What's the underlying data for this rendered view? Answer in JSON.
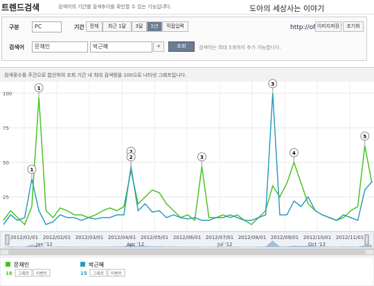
{
  "header": {
    "title": "트렌드검색",
    "description": "검색어의 기간별 검색추이를 확인할 수 있는 기능입니다.",
    "help": "?",
    "watermark": "도아의 세상사는 이야기",
    "url": "http://offree.net/",
    "buttons": [
      "이미지저장",
      "초기화"
    ]
  },
  "form": {
    "type_label": "구분",
    "type_value": "PC",
    "period_label": "기간",
    "periods": [
      "전체",
      "최근 1달",
      "3달",
      "1년",
      "직접입력"
    ],
    "keyword_label": "검색어",
    "keywords": [
      "문재인",
      "박근혜"
    ],
    "add": "+",
    "search": "조회",
    "hint": "검색어는 최대 5개까지 추가 가능합니다."
  },
  "chart": {
    "type": "line",
    "note": "검색횟수를 주간으로 합산하여 조회 기간 내 최대 검색량을 100으로 나타낸 그래프입니다.",
    "ylim": [
      0,
      100
    ],
    "yticks": [
      25,
      50,
      75,
      100
    ],
    "series": [
      {
        "name": "문재인",
        "color": "#46c31f",
        "values": [
          8,
          15,
          10,
          5,
          18,
          97,
          15,
          10,
          17,
          15,
          12,
          12,
          10,
          12,
          15,
          17,
          15,
          18,
          44,
          20,
          25,
          30,
          28,
          20,
          15,
          10,
          12,
          8,
          47,
          10,
          10,
          12,
          10,
          12,
          8,
          5,
          10,
          15,
          33,
          25,
          35,
          50,
          35,
          20,
          15,
          12,
          10,
          8,
          10,
          15,
          18,
          62,
          35
        ],
        "total": 18
      },
      {
        "name": "박근혜",
        "color": "#2a9bc0",
        "values": [
          5,
          12,
          8,
          10,
          38,
          15,
          5,
          7,
          12,
          10,
          10,
          8,
          10,
          9,
          10,
          10,
          12,
          12,
          47,
          15,
          20,
          14,
          15,
          10,
          12,
          10,
          9,
          10,
          8,
          8,
          10,
          10,
          12,
          10,
          8,
          8,
          10,
          12,
          100,
          12,
          12,
          22,
          18,
          25,
          15,
          12,
          10,
          8,
          12,
          10,
          8,
          30,
          36
        ],
        "total": 15
      }
    ],
    "annotations": [
      "1",
      "1",
      "2",
      "2",
      "3",
      "3",
      "4",
      "5"
    ],
    "x_labels": [
      "2012/01/01",
      "2012/02/01",
      "2012/03/01",
      "2012/04/01",
      "2012/05/01",
      "2012/06/01",
      "2012/07/01",
      "2012/08/01",
      "2012/09/01",
      "2012/10/01",
      "2012/11/01"
    ],
    "navigator_labels": [
      "Jan '12",
      "Apr '12",
      "Jul '12",
      "Oct '12"
    ],
    "legend_buttons": [
      "그래프",
      "이벤트"
    ]
  }
}
